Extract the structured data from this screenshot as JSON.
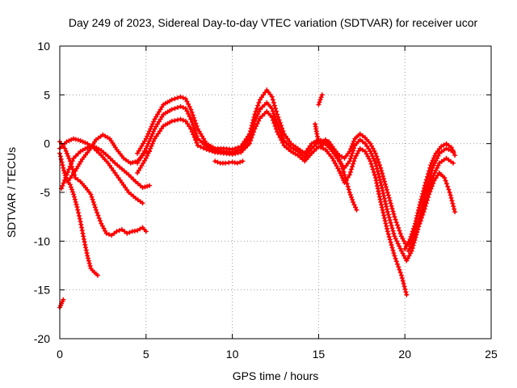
{
  "chart_data": {
    "type": "scatter",
    "title": "Day 249 of 2023, Sidereal Day-to-day VTEC variation (SDTVAR) for receiver ucor",
    "xlabel": "GPS time / hours",
    "ylabel": "SDTVAR / TECUs",
    "xlim": [
      0,
      25
    ],
    "ylim": [
      -20,
      10
    ],
    "xticks": [
      0,
      5,
      10,
      15,
      20,
      25
    ],
    "yticks": [
      -20,
      -15,
      -10,
      -5,
      0,
      5,
      10
    ],
    "grid": true,
    "marker": "plus",
    "color": "#ff0000",
    "series": [
      {
        "name": "track-1",
        "x": [
          0.0,
          0.3,
          0.6,
          0.9,
          1.2,
          1.5,
          1.8,
          2.1,
          2.4,
          2.7,
          3.0,
          3.3,
          3.6,
          3.9,
          4.2,
          4.5,
          4.8,
          5.0
        ],
        "y": [
          0.2,
          -0.5,
          -1.8,
          -3.5,
          -3.9,
          -4.5,
          -5.2,
          -6.8,
          -8.2,
          -9.2,
          -9.4,
          -9.0,
          -8.8,
          -9.2,
          -9.0,
          -8.9,
          -8.6,
          -9.0
        ]
      },
      {
        "name": "track-2",
        "x": [
          0.0,
          0.2,
          0.4,
          0.6,
          0.8,
          1.0,
          1.2,
          1.4,
          1.6,
          1.8,
          2.0,
          2.2
        ],
        "y": [
          -1.0,
          -2.5,
          -3.8,
          -4.2,
          -5.2,
          -6.5,
          -8.0,
          -9.8,
          -11.5,
          -12.8,
          -13.2,
          -13.5
        ]
      },
      {
        "name": "track-3",
        "x": [
          0.1,
          0.4,
          0.8,
          1.2,
          1.6,
          2.0,
          2.4,
          2.8,
          3.2,
          3.6,
          4.0,
          4.4,
          4.8,
          5.2
        ],
        "y": [
          -4.6,
          -3.2,
          -1.5,
          -0.8,
          -0.4,
          -0.3,
          -0.7,
          -1.3,
          -2.0,
          -2.6,
          -3.2,
          -3.9,
          -4.5,
          -4.3
        ]
      },
      {
        "name": "track-4",
        "x": [
          0.0,
          0.4,
          0.8,
          1.2,
          1.6,
          2.0,
          2.4,
          2.8,
          3.2,
          3.6,
          4.0,
          4.4,
          4.8
        ],
        "y": [
          -0.5,
          0.2,
          0.5,
          0.3,
          0.0,
          -0.5,
          -1.2,
          -2.0,
          -3.0,
          -4.0,
          -5.0,
          -5.6,
          -6.1
        ]
      },
      {
        "name": "track-5",
        "x": [
          0.5,
          0.9,
          1.3,
          1.7,
          2.1,
          2.5,
          2.9,
          3.3,
          3.7,
          4.1,
          4.5,
          4.9,
          5.2
        ],
        "y": [
          -3.8,
          -2.8,
          -1.6,
          -0.7,
          0.4,
          0.9,
          0.5,
          -0.6,
          -1.5,
          -2.0,
          -1.8,
          -1.0,
          -0.8
        ]
      },
      {
        "name": "track-6",
        "x": [
          0.0,
          0.1,
          0.2
        ],
        "y": [
          -16.8,
          -16.4,
          -16.0
        ]
      },
      {
        "name": "track-7",
        "x": [
          4.5,
          5.0,
          5.5,
          6.0,
          6.5,
          7.0,
          7.3,
          7.6,
          8.0,
          8.5,
          9.0,
          9.5,
          10.0,
          10.5,
          11.0,
          11.3,
          11.6,
          12.0,
          12.3,
          12.6,
          13.0,
          13.4,
          13.8,
          14.2,
          14.6,
          15.0,
          15.4,
          15.8,
          16.2,
          16.5,
          16.8,
          17.1,
          17.4,
          17.7,
          18.0,
          18.3,
          18.6,
          19.0,
          19.4,
          19.8,
          20.1,
          20.4,
          20.8,
          21.2,
          21.6,
          22.0,
          22.4,
          22.8
        ],
        "y": [
          -1.0,
          0.5,
          2.5,
          4.0,
          4.5,
          4.8,
          4.6,
          3.5,
          1.5,
          0.0,
          -0.5,
          -0.5,
          -0.6,
          -0.3,
          1.0,
          3.0,
          4.5,
          5.5,
          4.8,
          3.0,
          1.0,
          0.0,
          -0.5,
          -1.0,
          0.0,
          0.4,
          0.2,
          -0.4,
          -1.2,
          -1.5,
          -0.8,
          0.5,
          1.0,
          0.6,
          0.0,
          -1.0,
          -2.5,
          -5.0,
          -7.5,
          -9.5,
          -10.5,
          -10.0,
          -8.0,
          -5.0,
          -2.5,
          -1.0,
          -0.5,
          -0.8
        ]
      },
      {
        "name": "track-8",
        "x": [
          4.5,
          5.0,
          5.5,
          6.0,
          6.5,
          7.0,
          7.3,
          7.6,
          8.0,
          8.5,
          9.0,
          9.5,
          10.0,
          10.5,
          11.0,
          11.3,
          11.6,
          12.0,
          12.3,
          12.6,
          13.0,
          13.4,
          13.8,
          14.2,
          14.6,
          15.0,
          15.4,
          15.8,
          16.2,
          16.5,
          16.8,
          17.1,
          17.4,
          17.7,
          18.0,
          18.3,
          18.6,
          19.0,
          19.4,
          19.8,
          20.1,
          20.4,
          20.8,
          21.2,
          21.6,
          22.0,
          22.4,
          22.8
        ],
        "y": [
          -2.0,
          -0.5,
          1.5,
          3.0,
          3.5,
          3.8,
          3.6,
          2.5,
          0.5,
          -0.3,
          -0.7,
          -0.8,
          -0.9,
          -0.6,
          0.5,
          2.3,
          3.5,
          4.2,
          3.6,
          2.0,
          0.3,
          -0.4,
          -0.8,
          -1.4,
          -0.5,
          0.2,
          0.0,
          -0.8,
          -1.8,
          -2.5,
          -1.8,
          -0.2,
          0.4,
          0.0,
          -0.8,
          -2.0,
          -4.0,
          -7.0,
          -9.5,
          -11.0,
          -12.0,
          -11.0,
          -8.5,
          -5.5,
          -3.5,
          -2.0,
          -1.5,
          -2.0
        ]
      },
      {
        "name": "track-9",
        "x": [
          4.5,
          5.0,
          5.5,
          6.0,
          6.5,
          7.0,
          7.3,
          7.6,
          8.0,
          8.5,
          9.0,
          9.5,
          10.0,
          10.5,
          11.0,
          11.3,
          11.6,
          12.0,
          12.3,
          12.6,
          13.0,
          13.4,
          13.8,
          14.2,
          14.6,
          15.0,
          15.4,
          15.8,
          16.2,
          16.5,
          16.8,
          17.1,
          17.4,
          17.7,
          18.0,
          18.3,
          18.6,
          19.0,
          19.4,
          19.8,
          20.1
        ],
        "y": [
          -3.0,
          -1.5,
          0.5,
          1.8,
          2.3,
          2.5,
          2.3,
          1.5,
          -0.2,
          -0.6,
          -0.9,
          -1.0,
          -1.1,
          -0.9,
          0.0,
          1.5,
          2.6,
          3.3,
          2.7,
          1.2,
          -0.2,
          -0.8,
          -1.2,
          -1.8,
          -1.0,
          -0.3,
          -0.6,
          -1.5,
          -2.8,
          -4.0,
          -3.2,
          -1.5,
          -0.5,
          -0.8,
          -1.8,
          -3.5,
          -6.0,
          -9.0,
          -11.5,
          -13.5,
          -15.5
        ]
      },
      {
        "name": "track-10",
        "x": [
          9.0,
          9.3,
          9.6,
          10.0,
          10.3,
          10.6
        ],
        "y": [
          -1.8,
          -2.0,
          -2.0,
          -1.9,
          -2.0,
          -1.8
        ]
      },
      {
        "name": "track-11",
        "x": [
          15.0,
          15.1,
          15.2
        ],
        "y": [
          4.0,
          4.5,
          5.0
        ]
      },
      {
        "name": "track-12",
        "x": [
          14.8,
          14.9,
          15.0,
          15.2,
          15.4,
          15.6,
          15.8,
          16.0,
          16.2,
          16.4,
          16.6,
          16.8,
          17.0,
          17.2
        ],
        "y": [
          2.0,
          1.0,
          0.2,
          -0.2,
          0.4,
          0.2,
          -0.3,
          -0.8,
          -1.6,
          -2.6,
          -3.8,
          -5.0,
          -6.0,
          -6.8
        ]
      },
      {
        "name": "track-13",
        "x": [
          20.2,
          20.5,
          20.8,
          21.1,
          21.4,
          21.7,
          22.0,
          22.3,
          22.6,
          22.9
        ],
        "y": [
          -11.0,
          -10.0,
          -8.5,
          -7.0,
          -5.2,
          -3.8,
          -3.0,
          -3.5,
          -5.0,
          -7.0
        ]
      },
      {
        "name": "track-14",
        "x": [
          20.0,
          20.3,
          20.6,
          20.9,
          21.2,
          21.5,
          21.8,
          22.1,
          22.4,
          22.7,
          22.9
        ],
        "y": [
          -10.8,
          -9.8,
          -8.2,
          -6.0,
          -4.0,
          -2.2,
          -1.0,
          -0.3,
          0.0,
          -0.4,
          -1.2
        ]
      }
    ]
  }
}
